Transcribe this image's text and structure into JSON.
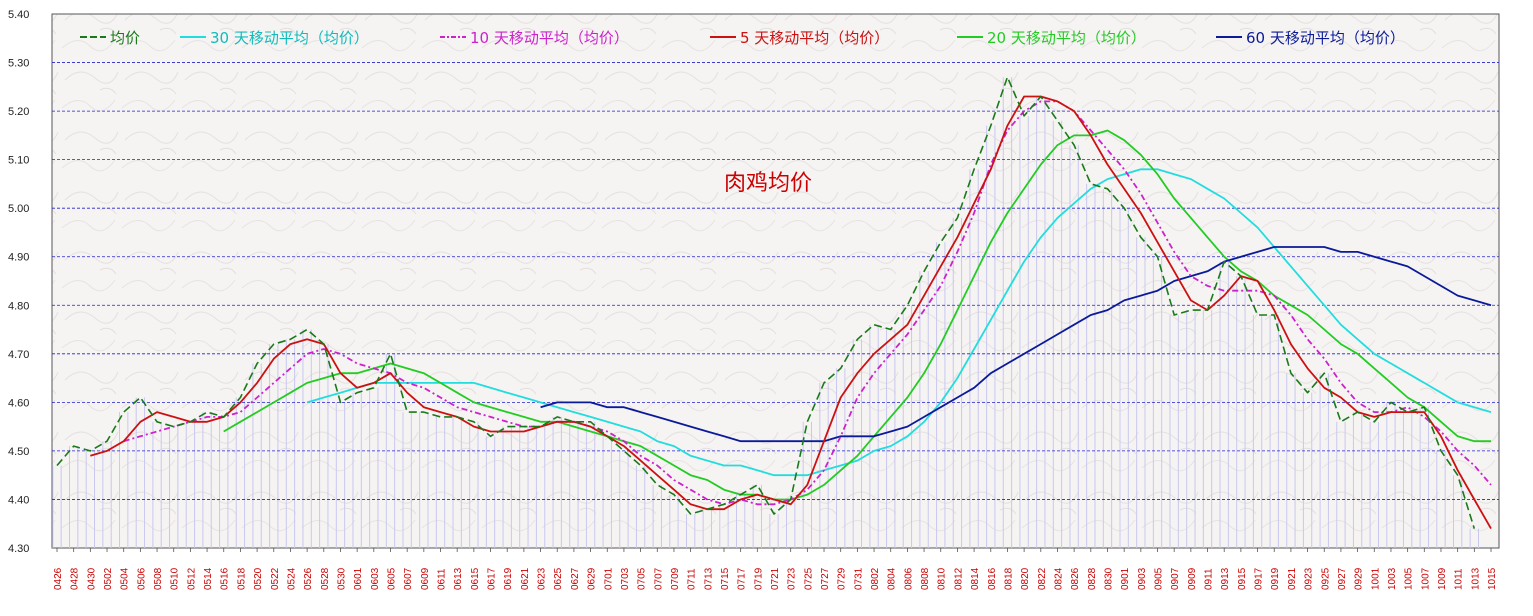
{
  "chart_data": {
    "type": "line",
    "title": "肉鸡均价",
    "xlabel": "",
    "ylabel": "",
    "ylim": [
      4.3,
      5.4
    ],
    "yticks": [
      "4.30",
      "4.40",
      "4.50",
      "4.60",
      "4.70",
      "4.80",
      "4.90",
      "5.00",
      "5.10",
      "5.20",
      "5.30",
      "5.40"
    ],
    "x_labels": [
      "0426",
      "0428",
      "0430",
      "0502",
      "0504",
      "0506",
      "0508",
      "0510",
      "0512",
      "0514",
      "0516",
      "0518",
      "0520",
      "0522",
      "0524",
      "0526",
      "0528",
      "0530",
      "0601",
      "0603",
      "0605",
      "0607",
      "0609",
      "0611",
      "0613",
      "0615",
      "0617",
      "0619",
      "0621",
      "0623",
      "0625",
      "0627",
      "0629",
      "0701",
      "0703",
      "0705",
      "0707",
      "0709",
      "0711",
      "0713",
      "0715",
      "0717",
      "0719",
      "0721",
      "0723",
      "0725",
      "0727",
      "0729",
      "0731",
      "0802",
      "0804",
      "0806",
      "0808",
      "0810",
      "0812",
      "0814",
      "0816",
      "0818",
      "0820",
      "0822",
      "0824",
      "0826",
      "0828",
      "0830",
      "0901",
      "0903",
      "0905",
      "0907",
      "0909",
      "0911",
      "0913",
      "0915",
      "0917",
      "0919",
      "0921",
      "0923",
      "0925",
      "0927",
      "0929",
      "1001",
      "1003",
      "1005",
      "1007",
      "1009",
      "1011",
      "1013",
      "1015"
    ],
    "colors": {
      "bars": "#c8c8f0",
      "grid": "#2222cc",
      "avg": "#1a7a1a",
      "ma30": "#22dddd",
      "ma10": "#cc22cc",
      "ma5": "#cc1111",
      "ma20": "#22cc22",
      "ma60": "#0a1a99",
      "title": "#cc0000"
    },
    "series": [
      {
        "name": "均价",
        "key": "avg",
        "dash": "8,4",
        "values": [
          4.47,
          4.51,
          4.5,
          4.52,
          4.58,
          4.61,
          4.56,
          4.55,
          4.56,
          4.58,
          4.57,
          4.61,
          4.68,
          4.72,
          4.73,
          4.75,
          4.72,
          4.6,
          4.62,
          4.63,
          4.7,
          4.58,
          4.58,
          4.57,
          4.57,
          4.56,
          4.53,
          4.55,
          4.55,
          4.55,
          4.57,
          4.56,
          4.56,
          4.53,
          4.5,
          4.47,
          4.43,
          4.41,
          4.37,
          4.38,
          4.39,
          4.41,
          4.43,
          4.37,
          4.4,
          4.56,
          4.64,
          4.67,
          4.73,
          4.76,
          4.75,
          4.8,
          4.87,
          4.93,
          4.98,
          5.08,
          5.17,
          5.27,
          5.19,
          5.23,
          5.18,
          5.13,
          5.05,
          5.04,
          5.0,
          4.94,
          4.9,
          4.78,
          4.79,
          4.79,
          4.89,
          4.86,
          4.78,
          4.78,
          4.66,
          4.62,
          4.66,
          4.56,
          4.58,
          4.56,
          4.6,
          4.58,
          4.59,
          4.5,
          4.45,
          4.34,
          null
        ]
      },
      {
        "name": "30 天移动平均（均价）",
        "key": "ma30",
        "dash": "",
        "values": [
          null,
          null,
          null,
          null,
          null,
          null,
          null,
          null,
          null,
          null,
          null,
          null,
          null,
          null,
          null,
          4.6,
          4.61,
          4.62,
          4.63,
          4.64,
          4.64,
          4.64,
          4.64,
          4.64,
          4.64,
          4.64,
          4.63,
          4.62,
          4.61,
          4.6,
          4.59,
          4.58,
          4.57,
          4.56,
          4.55,
          4.54,
          4.52,
          4.51,
          4.49,
          4.48,
          4.47,
          4.47,
          4.46,
          4.45,
          4.45,
          4.45,
          4.46,
          4.47,
          4.48,
          4.5,
          4.51,
          4.53,
          4.56,
          4.6,
          4.65,
          4.71,
          4.77,
          4.83,
          4.89,
          4.94,
          4.98,
          5.01,
          5.04,
          5.06,
          5.07,
          5.08,
          5.08,
          5.07,
          5.06,
          5.04,
          5.02,
          4.99,
          4.96,
          4.92,
          4.88,
          4.84,
          4.8,
          4.76,
          4.73,
          4.7,
          4.68,
          4.66,
          4.64,
          4.62,
          4.6,
          4.59,
          4.58
        ]
      },
      {
        "name": "10 天移动平均（均价）",
        "key": "ma10",
        "dash": "6,3,2,3",
        "values": [
          null,
          null,
          null,
          null,
          4.52,
          4.53,
          4.54,
          4.55,
          4.56,
          4.57,
          4.57,
          4.58,
          4.61,
          4.64,
          4.67,
          4.7,
          4.71,
          4.7,
          4.68,
          4.67,
          4.66,
          4.64,
          4.63,
          4.61,
          4.59,
          4.58,
          4.57,
          4.56,
          4.55,
          4.55,
          4.56,
          4.56,
          4.55,
          4.54,
          4.52,
          4.49,
          4.47,
          4.44,
          4.42,
          4.4,
          4.39,
          4.4,
          4.39,
          4.39,
          4.4,
          4.42,
          4.46,
          4.53,
          4.61,
          4.66,
          4.7,
          4.74,
          4.79,
          4.84,
          4.91,
          4.99,
          5.09,
          5.16,
          5.2,
          5.22,
          5.22,
          5.2,
          5.16,
          5.12,
          5.08,
          5.03,
          4.97,
          4.91,
          4.86,
          4.84,
          4.83,
          4.83,
          4.83,
          4.82,
          4.78,
          4.73,
          4.69,
          4.64,
          4.6,
          4.58,
          4.58,
          4.59,
          4.57,
          4.54,
          4.5,
          4.47,
          4.43
        ]
      },
      {
        "name": "5 天移动平均（均价）",
        "key": "ma5",
        "dash": "",
        "values": [
          null,
          null,
          4.49,
          4.5,
          4.52,
          4.56,
          4.58,
          4.57,
          4.56,
          4.56,
          4.57,
          4.6,
          4.64,
          4.69,
          4.72,
          4.73,
          4.72,
          4.66,
          4.63,
          4.64,
          4.66,
          4.62,
          4.59,
          4.58,
          4.57,
          4.55,
          4.54,
          4.54,
          4.54,
          4.55,
          4.56,
          4.56,
          4.55,
          4.53,
          4.51,
          4.48,
          4.45,
          4.42,
          4.39,
          4.38,
          4.38,
          4.4,
          4.41,
          4.4,
          4.39,
          4.43,
          4.52,
          4.61,
          4.66,
          4.7,
          4.73,
          4.76,
          4.82,
          4.88,
          4.94,
          5.01,
          5.08,
          5.17,
          5.23,
          5.23,
          5.22,
          5.2,
          5.15,
          5.09,
          5.04,
          4.99,
          4.93,
          4.87,
          4.81,
          4.79,
          4.82,
          4.86,
          4.85,
          4.79,
          4.72,
          4.67,
          4.63,
          4.61,
          4.58,
          4.57,
          4.58,
          4.58,
          4.58,
          4.53,
          4.46,
          4.4,
          4.34
        ]
      },
      {
        "name": "20 天移动平均（均价）",
        "key": "ma20",
        "dash": "",
        "values": [
          null,
          null,
          null,
          null,
          null,
          null,
          null,
          null,
          null,
          null,
          4.54,
          4.56,
          4.58,
          4.6,
          4.62,
          4.64,
          4.65,
          4.66,
          4.66,
          4.67,
          4.68,
          4.67,
          4.66,
          4.64,
          4.62,
          4.6,
          4.59,
          4.58,
          4.57,
          4.56,
          4.56,
          4.55,
          4.54,
          4.53,
          4.52,
          4.51,
          4.49,
          4.47,
          4.45,
          4.44,
          4.42,
          4.41,
          4.41,
          4.4,
          4.4,
          4.41,
          4.43,
          4.46,
          4.49,
          4.53,
          4.57,
          4.61,
          4.66,
          4.72,
          4.79,
          4.86,
          4.93,
          4.99,
          5.04,
          5.09,
          5.13,
          5.15,
          5.15,
          5.16,
          5.14,
          5.11,
          5.07,
          5.02,
          4.98,
          4.94,
          4.9,
          4.87,
          4.85,
          4.82,
          4.8,
          4.78,
          4.75,
          4.72,
          4.7,
          4.67,
          4.64,
          4.61,
          4.59,
          4.56,
          4.53,
          4.52,
          4.52
        ]
      },
      {
        "name": "60 天移动平均（均价）",
        "key": "ma60",
        "dash": "",
        "values": [
          null,
          null,
          null,
          null,
          null,
          null,
          null,
          null,
          null,
          null,
          null,
          null,
          null,
          null,
          null,
          null,
          null,
          null,
          null,
          null,
          null,
          null,
          null,
          null,
          null,
          null,
          null,
          null,
          null,
          4.59,
          4.6,
          4.6,
          4.6,
          4.59,
          4.59,
          4.58,
          4.57,
          4.56,
          4.55,
          4.54,
          4.53,
          4.52,
          4.52,
          4.52,
          4.52,
          4.52,
          4.52,
          4.53,
          4.53,
          4.53,
          4.54,
          4.55,
          4.57,
          4.59,
          4.61,
          4.63,
          4.66,
          4.68,
          4.7,
          4.72,
          4.74,
          4.76,
          4.78,
          4.79,
          4.81,
          4.82,
          4.83,
          4.85,
          4.86,
          4.87,
          4.89,
          4.9,
          4.91,
          4.92,
          4.92,
          4.92,
          4.92,
          4.91,
          4.91,
          4.9,
          4.89,
          4.88,
          4.86,
          4.84,
          4.82,
          4.81,
          4.8
        ]
      }
    ],
    "legend": [
      "均价",
      "30 天移动平均（均价）",
      "10 天移动平均（均价）",
      "5 天移动平均（均价）",
      "20 天移动平均（均价）",
      "60 天移动平均（均价）"
    ]
  }
}
